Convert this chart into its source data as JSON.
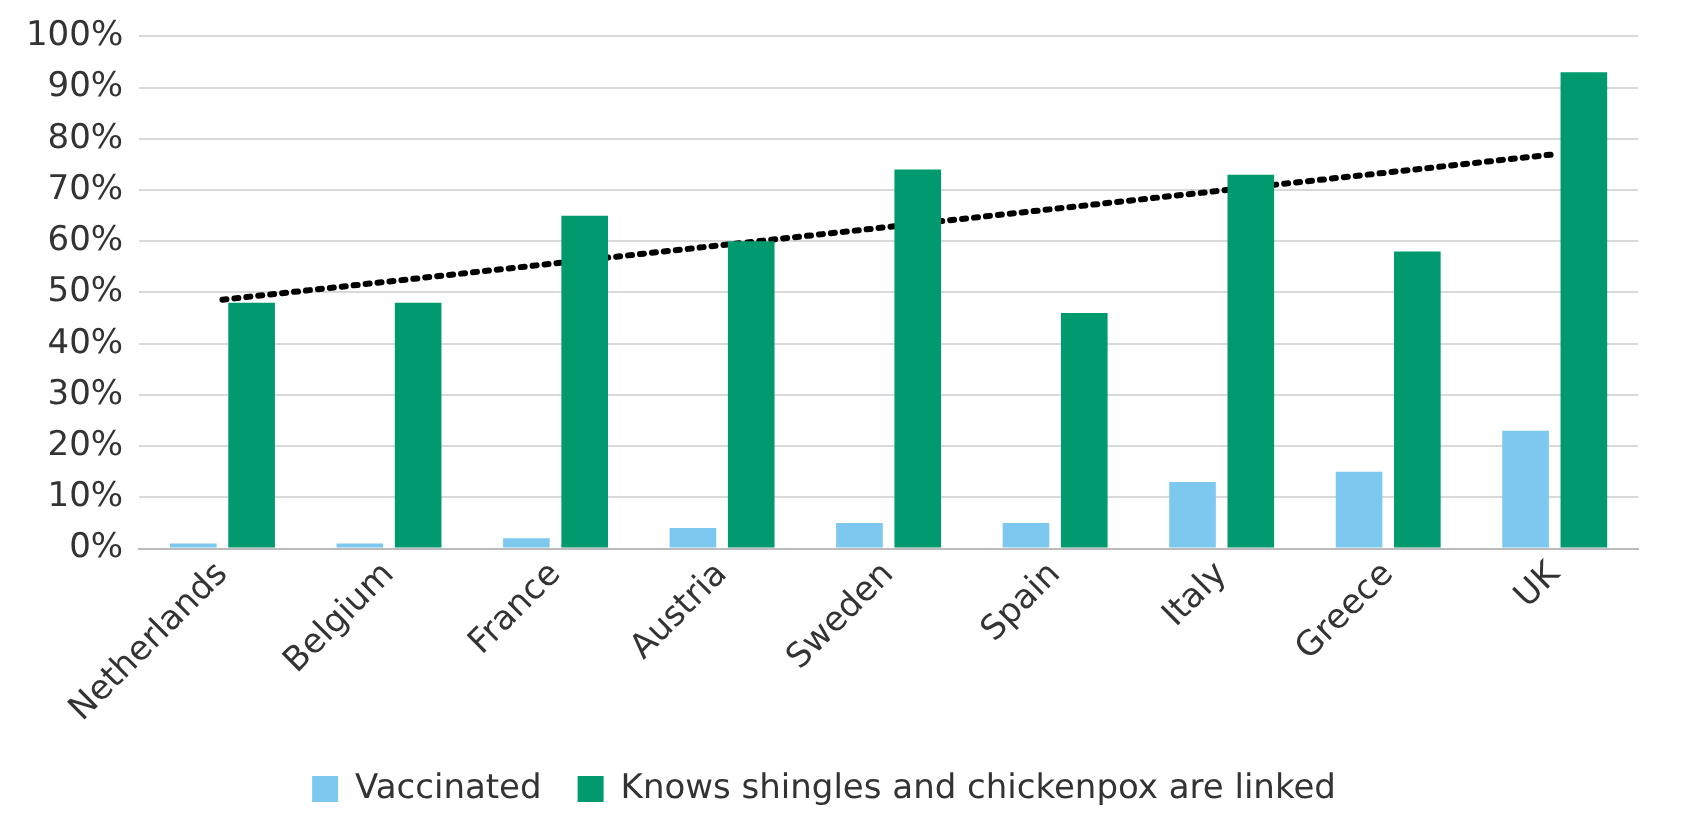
{
  "chart_data": {
    "type": "bar",
    "categories": [
      "Netherlands",
      "Belgium",
      "France",
      "Austria",
      "Sweden",
      "Spain",
      "Italy",
      "Greece",
      "UK"
    ],
    "series": [
      {
        "name": "Vaccinated",
        "color": "#7dc8ee",
        "values": [
          1,
          1,
          2,
          4,
          5,
          5,
          13,
          15,
          23
        ]
      },
      {
        "name": "Knows shingles and chickenpox are linked",
        "color": "#009a6e",
        "values": [
          48,
          48,
          65,
          60,
          74,
          46,
          73,
          58,
          93
        ]
      },
      {
        "type": "line",
        "color": "#000000",
        "x": [
          "Netherlands",
          "UK"
        ],
        "values": [
          48.6,
          77
        ],
        "line_style": "dotted",
        "marker": "none"
      }
    ],
    "ylim": [
      0,
      100
    ],
    "yticks": [
      {
        "value": 0,
        "label": "0%"
      },
      {
        "value": 10,
        "label": "10%"
      },
      {
        "value": 20,
        "label": "20%"
      },
      {
        "value": 30,
        "label": "30%"
      },
      {
        "value": 40,
        "label": "40%"
      },
      {
        "value": 50,
        "label": "50%"
      },
      {
        "value": 60,
        "label": "60%"
      },
      {
        "value": 70,
        "label": "70%"
      },
      {
        "value": 80,
        "label": "80%"
      },
      {
        "value": 90,
        "label": "90%"
      },
      {
        "value": 100,
        "label": "100%"
      }
    ],
    "grid": "y",
    "legend": "bottom"
  }
}
